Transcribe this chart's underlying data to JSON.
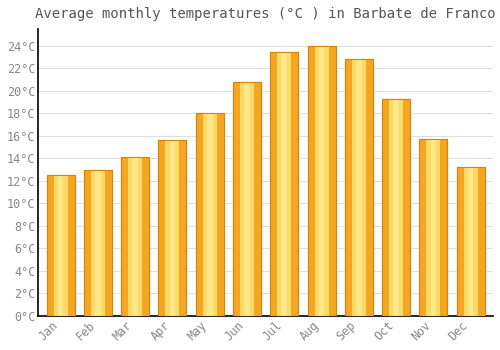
{
  "title": "Average monthly temperatures (°C ) in Barbate de Franco",
  "months": [
    "Jan",
    "Feb",
    "Mar",
    "Apr",
    "May",
    "Jun",
    "Jul",
    "Aug",
    "Sep",
    "Oct",
    "Nov",
    "Dec"
  ],
  "values": [
    12.5,
    13.0,
    14.1,
    15.6,
    18.0,
    20.8,
    23.5,
    24.0,
    22.8,
    19.3,
    15.7,
    13.2
  ],
  "bar_color_left": "#F5A623",
  "bar_color_center": "#FFD965",
  "bar_color_right": "#F5A623",
  "bar_edge_color": "#D4880A",
  "background_color": "#FFFFFF",
  "plot_bg_color": "#FFFFFF",
  "grid_color": "#DDDDDD",
  "ylim": [
    0,
    25.5
  ],
  "yticks": [
    0,
    2,
    4,
    6,
    8,
    10,
    12,
    14,
    16,
    18,
    20,
    22,
    24
  ],
  "ytick_labels": [
    "0°C",
    "2°C",
    "4°C",
    "6°C",
    "8°C",
    "10°C",
    "12°C",
    "14°C",
    "16°C",
    "18°C",
    "20°C",
    "22°C",
    "24°C"
  ],
  "title_fontsize": 10,
  "tick_fontsize": 8.5,
  "font_color": "#888888",
  "title_color": "#555555",
  "font_family": "monospace",
  "bar_width": 0.75,
  "spine_color": "#000000",
  "bottom_spine": true
}
